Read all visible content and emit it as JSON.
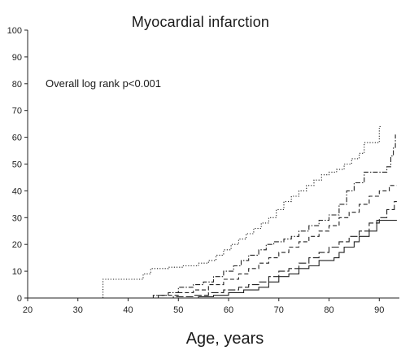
{
  "chart_data": {
    "type": "line",
    "title": "Myocardial infarction",
    "xlabel": "Age, years",
    "ylabel": "",
    "annotation": "Overall log rank p<0.001",
    "xlim": [
      20,
      94
    ],
    "ylim": [
      0,
      100
    ],
    "x_ticks": [
      20,
      30,
      40,
      50,
      60,
      70,
      80,
      90
    ],
    "y_ticks": [
      0,
      10,
      20,
      30,
      40,
      50,
      60,
      70,
      80,
      90,
      100
    ],
    "step": true,
    "grid": false,
    "series": [
      {
        "line_style": "dotted",
        "color": "#222222",
        "points": [
          [
            20,
            0
          ],
          [
            35,
            0
          ],
          [
            35,
            7
          ],
          [
            43,
            7
          ],
          [
            43,
            9
          ],
          [
            44.5,
            9
          ],
          [
            44.5,
            11
          ],
          [
            48,
            11
          ],
          [
            48,
            11.5
          ],
          [
            51,
            11.5
          ],
          [
            51,
            12
          ],
          [
            54,
            12
          ],
          [
            54,
            13
          ],
          [
            56,
            13
          ],
          [
            56,
            14
          ],
          [
            57.5,
            14
          ],
          [
            57.5,
            16
          ],
          [
            59,
            16
          ],
          [
            59,
            18
          ],
          [
            60.5,
            18
          ],
          [
            60.5,
            20
          ],
          [
            62,
            20
          ],
          [
            62,
            22
          ],
          [
            63.5,
            22
          ],
          [
            63.5,
            24
          ],
          [
            65,
            24
          ],
          [
            65,
            26
          ],
          [
            66.5,
            26
          ],
          [
            66.5,
            28
          ],
          [
            68,
            28
          ],
          [
            68,
            30
          ],
          [
            69.5,
            30
          ],
          [
            69.5,
            33
          ],
          [
            71,
            33
          ],
          [
            71,
            36
          ],
          [
            72.5,
            36
          ],
          [
            72.5,
            38
          ],
          [
            74,
            38
          ],
          [
            74,
            40
          ],
          [
            75.5,
            40
          ],
          [
            75.5,
            42
          ],
          [
            77,
            42
          ],
          [
            77,
            44
          ],
          [
            78.5,
            44
          ],
          [
            78.5,
            46
          ],
          [
            80,
            46
          ],
          [
            80,
            47
          ],
          [
            81.5,
            47
          ],
          [
            81.5,
            48
          ],
          [
            83,
            48
          ],
          [
            83,
            50
          ],
          [
            84.5,
            50
          ],
          [
            84.5,
            52
          ],
          [
            86,
            52
          ],
          [
            86,
            54
          ],
          [
            87,
            54
          ],
          [
            87,
            58
          ],
          [
            90,
            58
          ],
          [
            90,
            64
          ],
          [
            90.3,
            64
          ]
        ]
      },
      {
        "line_style": "dash-dot",
        "color": "#222222",
        "points": [
          [
            43,
            0
          ],
          [
            45,
            0
          ],
          [
            45,
            1
          ],
          [
            48,
            1
          ],
          [
            48,
            2
          ],
          [
            50,
            2
          ],
          [
            50,
            4
          ],
          [
            53,
            4
          ],
          [
            53,
            5
          ],
          [
            55,
            5
          ],
          [
            55,
            6
          ],
          [
            57,
            6
          ],
          [
            57,
            8
          ],
          [
            59,
            8
          ],
          [
            59,
            10
          ],
          [
            61,
            10
          ],
          [
            61,
            12
          ],
          [
            62.5,
            12
          ],
          [
            62.5,
            14
          ],
          [
            64,
            14
          ],
          [
            64,
            16
          ],
          [
            66,
            16
          ],
          [
            66,
            18
          ],
          [
            67.5,
            18
          ],
          [
            67.5,
            20
          ],
          [
            69,
            20
          ],
          [
            69,
            21
          ],
          [
            71,
            21
          ],
          [
            71,
            22
          ],
          [
            72.5,
            22
          ],
          [
            72.5,
            23
          ],
          [
            74,
            23
          ],
          [
            74,
            25
          ],
          [
            76,
            25
          ],
          [
            76,
            27
          ],
          [
            78,
            27
          ],
          [
            78,
            29
          ],
          [
            80,
            29
          ],
          [
            80,
            31
          ],
          [
            82,
            31
          ],
          [
            82,
            35
          ],
          [
            83.5,
            35
          ],
          [
            83.5,
            40
          ],
          [
            85,
            40
          ],
          [
            85,
            43
          ],
          [
            87,
            43
          ],
          [
            87,
            47
          ],
          [
            91.5,
            47
          ],
          [
            91.5,
            49
          ],
          [
            92.3,
            49
          ],
          [
            92.3,
            53
          ],
          [
            92.8,
            53
          ],
          [
            92.8,
            56
          ],
          [
            93.2,
            56
          ],
          [
            93.2,
            61
          ]
        ]
      },
      {
        "line_style": "dashed",
        "color": "#222222",
        "points": [
          [
            42,
            0
          ],
          [
            46,
            0
          ],
          [
            46,
            1
          ],
          [
            50,
            1
          ],
          [
            50,
            2
          ],
          [
            53,
            2
          ],
          [
            53,
            3
          ],
          [
            56,
            3
          ],
          [
            56,
            5
          ],
          [
            59,
            5
          ],
          [
            59,
            7
          ],
          [
            62,
            7
          ],
          [
            62,
            9
          ],
          [
            64,
            9
          ],
          [
            64,
            11
          ],
          [
            66,
            11
          ],
          [
            66,
            13
          ],
          [
            68,
            13
          ],
          [
            68,
            15
          ],
          [
            70,
            15
          ],
          [
            70,
            17
          ],
          [
            72,
            17
          ],
          [
            72,
            19
          ],
          [
            74,
            19
          ],
          [
            74,
            21
          ],
          [
            76,
            21
          ],
          [
            76,
            23
          ],
          [
            78,
            23
          ],
          [
            78,
            25
          ],
          [
            80,
            25
          ],
          [
            80,
            27
          ],
          [
            82,
            27
          ],
          [
            82,
            30
          ],
          [
            84,
            30
          ],
          [
            84,
            32
          ],
          [
            86,
            32
          ],
          [
            86,
            35
          ],
          [
            88,
            35
          ],
          [
            88,
            38
          ],
          [
            90,
            38
          ],
          [
            90,
            40
          ],
          [
            92,
            40
          ],
          [
            92,
            42
          ],
          [
            93.5,
            42
          ]
        ]
      },
      {
        "line_style": "long-dash",
        "color": "#222222",
        "points": [
          [
            44,
            0
          ],
          [
            49,
            0
          ],
          [
            49,
            0.5
          ],
          [
            53,
            0.5
          ],
          [
            53,
            1
          ],
          [
            56,
            1
          ],
          [
            56,
            2
          ],
          [
            59,
            2
          ],
          [
            59,
            3
          ],
          [
            62,
            3
          ],
          [
            62,
            4
          ],
          [
            64,
            4
          ],
          [
            64,
            5
          ],
          [
            66,
            5
          ],
          [
            66,
            6
          ],
          [
            68,
            6
          ],
          [
            68,
            8
          ],
          [
            70,
            8
          ],
          [
            70,
            10
          ],
          [
            72,
            10
          ],
          [
            72,
            11
          ],
          [
            74,
            11
          ],
          [
            74,
            13
          ],
          [
            76,
            13
          ],
          [
            76,
            15
          ],
          [
            78,
            15
          ],
          [
            78,
            17
          ],
          [
            80,
            17
          ],
          [
            80,
            19
          ],
          [
            82,
            19
          ],
          [
            82,
            21
          ],
          [
            84,
            21
          ],
          [
            84,
            23
          ],
          [
            86,
            23
          ],
          [
            86,
            25
          ],
          [
            88,
            25
          ],
          [
            88,
            28
          ],
          [
            90,
            28
          ],
          [
            90,
            30
          ],
          [
            91.5,
            30
          ],
          [
            91.5,
            33
          ],
          [
            93,
            33
          ],
          [
            93,
            36
          ],
          [
            93.5,
            36
          ]
        ]
      },
      {
        "line_style": "solid",
        "color": "#222222",
        "points": [
          [
            45,
            0
          ],
          [
            54,
            0
          ],
          [
            54,
            0.5
          ],
          [
            57,
            0.5
          ],
          [
            57,
            1
          ],
          [
            60,
            1
          ],
          [
            60,
            2
          ],
          [
            63,
            2
          ],
          [
            63,
            3
          ],
          [
            66,
            3
          ],
          [
            66,
            4
          ],
          [
            68,
            4
          ],
          [
            68,
            6
          ],
          [
            70,
            6
          ],
          [
            70,
            8
          ],
          [
            72,
            8
          ],
          [
            72,
            9
          ],
          [
            74,
            9
          ],
          [
            74,
            11
          ],
          [
            76,
            11
          ],
          [
            76,
            12
          ],
          [
            78,
            12
          ],
          [
            78,
            14
          ],
          [
            81,
            14
          ],
          [
            81,
            15
          ],
          [
            82,
            15
          ],
          [
            82,
            17
          ],
          [
            83,
            17
          ],
          [
            83,
            19
          ],
          [
            85,
            19
          ],
          [
            85,
            21
          ],
          [
            86,
            21
          ],
          [
            86,
            23
          ],
          [
            88,
            23
          ],
          [
            88,
            25
          ],
          [
            89.5,
            25
          ],
          [
            89.5,
            29
          ],
          [
            91,
            29
          ],
          [
            91,
            29
          ],
          [
            93.5,
            29
          ]
        ]
      }
    ]
  }
}
